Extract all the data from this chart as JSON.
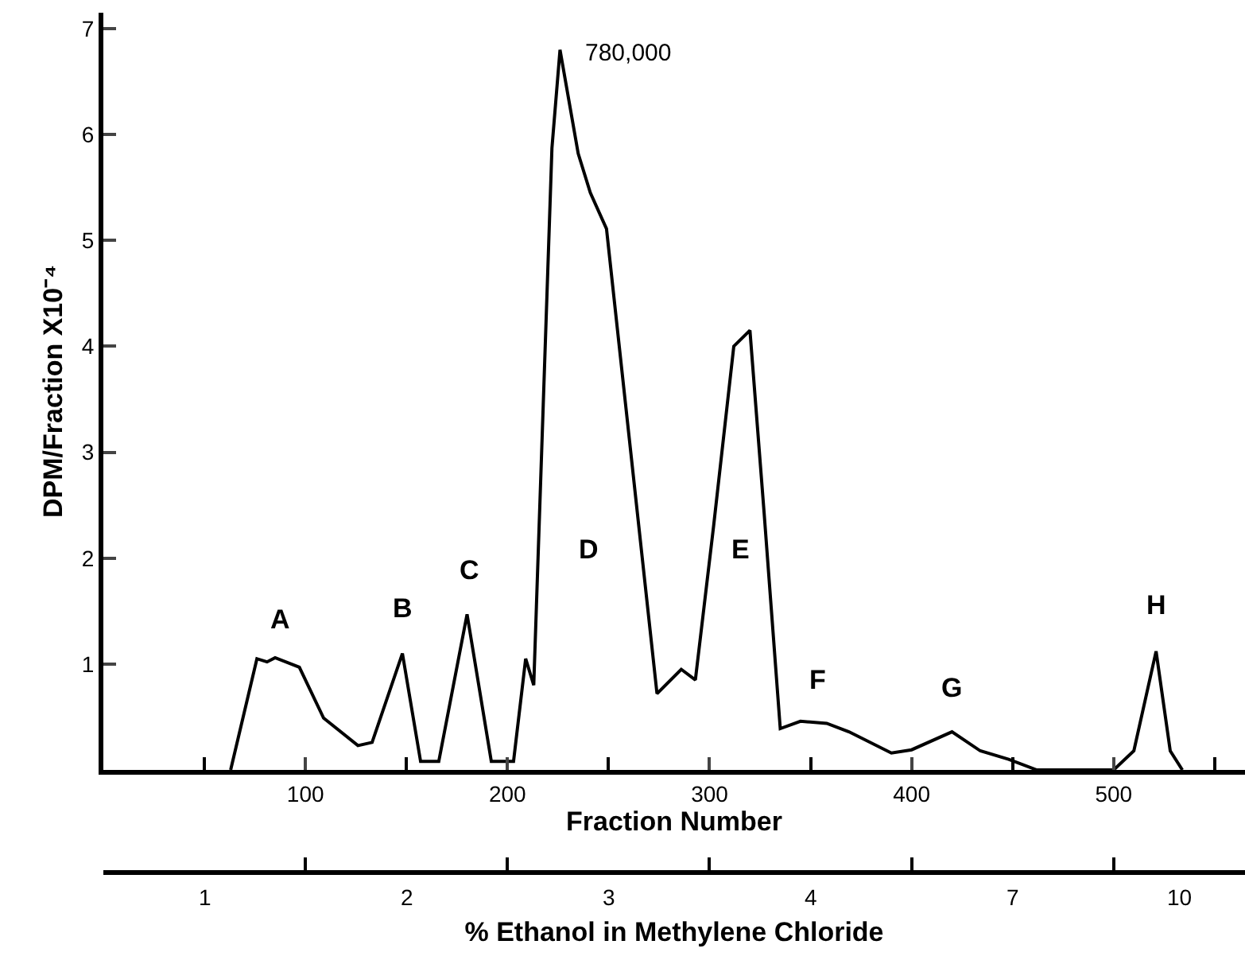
{
  "chart_data": {
    "type": "line",
    "xlabel": "Fraction Number",
    "ylabel": "DPM/Fraction X10⁻⁴",
    "x2label": "% Ethanol in Methylene Chloride",
    "x": [
      63,
      76,
      81,
      85,
      97,
      109,
      126,
      133,
      148,
      157,
      166,
      180,
      192,
      203,
      209,
      213,
      222,
      226,
      235,
      241,
      249,
      274,
      286,
      293,
      302,
      312,
      320,
      327,
      335,
      345,
      358,
      369,
      390,
      400,
      420,
      434,
      448,
      462,
      500,
      510,
      521,
      528,
      534
    ],
    "series": [
      {
        "color": "#000000",
        "values": [
          0,
          1.05,
          1.02,
          1.06,
          0.97,
          0.49,
          0.23,
          0.26,
          1.1,
          0.08,
          0.08,
          1.47,
          0.08,
          0.08,
          1.05,
          0.8,
          5.87,
          6.8,
          5.82,
          5.45,
          5.11,
          0.72,
          0.95,
          0.85,
          2.3,
          4.0,
          4.15,
          2.43,
          0.39,
          0.46,
          0.44,
          0.36,
          0.16,
          0.19,
          0.36,
          0.18,
          0.1,
          0,
          0,
          0.18,
          1.12,
          0.18,
          0
        ]
      }
    ],
    "xlim": [
      0,
      565
    ],
    "ylim": [
      0,
      7.15
    ],
    "xticks": [
      {
        "value": 50,
        "label": null
      },
      100,
      {
        "value": 150,
        "label": null
      },
      200,
      {
        "value": 250,
        "label": null
      },
      300,
      {
        "value": 350,
        "label": null
      },
      400,
      {
        "value": 450,
        "label": null
      },
      500,
      {
        "value": 550,
        "label": null
      }
    ],
    "yticks": [
      1,
      2,
      3,
      4,
      5,
      6,
      7
    ],
    "annotations": [
      "A",
      "B",
      "C",
      "D",
      "E",
      "F",
      "G",
      "H",
      {
        "text": "780,000",
        "x": 226,
        "y": 6.8
      },
      "1",
      "2",
      "3",
      "4",
      "7",
      "10"
    ],
    "marker": "none",
    "line_style": "solid"
  }
}
